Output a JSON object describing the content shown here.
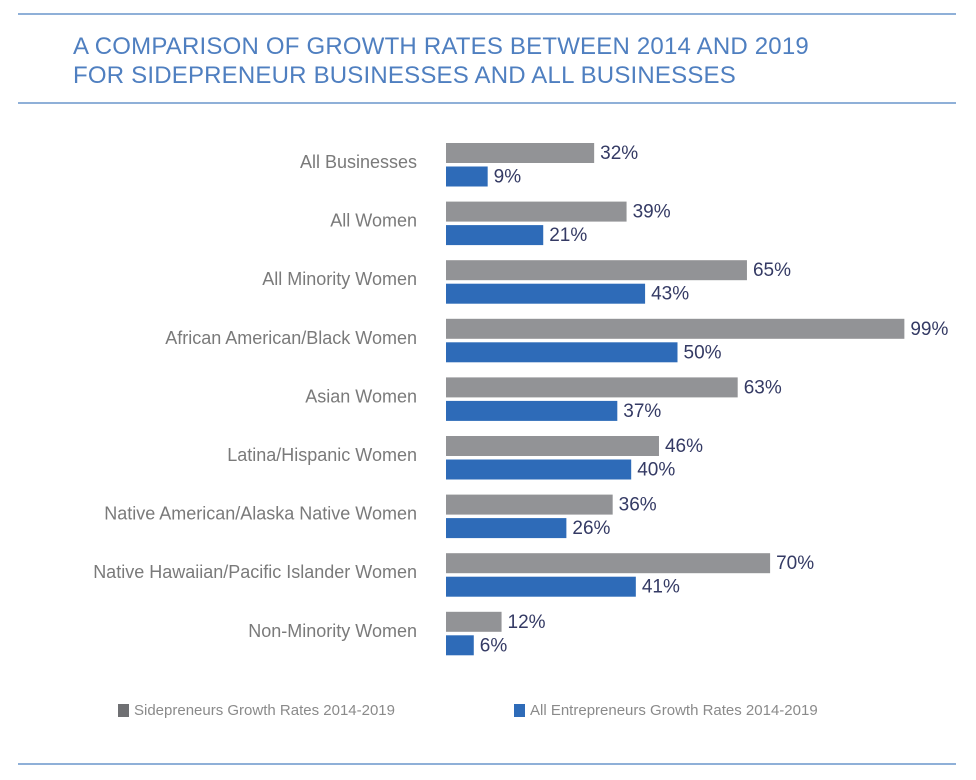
{
  "title_lines": [
    "A COMPARISON OF GROWTH RATES BETWEEN 2014 AND 2019",
    "FOR SIDEPRENEUR BUSINESSES AND ALL BUSINESSES"
  ],
  "colors": {
    "title": "#4f7fc0",
    "rule": "#8fb0d8",
    "sidepreneurs": "#929396",
    "all_entrepreneurs": "#2e6bb8",
    "value_label": "#343a64",
    "category_label": "#7a7a7a"
  },
  "chart_data": {
    "type": "bar",
    "orientation": "horizontal",
    "title": "A COMPARISON OF GROWTH RATES BETWEEN 2014 AND 2019 FOR SIDEPRENEUR BUSINESSES AND ALL BUSINESSES",
    "xlabel": "",
    "ylabel": "",
    "xlim": [
      0,
      100
    ],
    "grid": false,
    "legend_position": "bottom",
    "value_suffix": "%",
    "categories": [
      "All Businesses",
      "All Women",
      "All Minority Women",
      "African American/Black Women",
      "Asian Women",
      "Latina/Hispanic Women",
      "Native American/Alaska Native Women",
      "Native Hawaiian/Pacific Islander Women",
      "Non-Minority Women"
    ],
    "series": [
      {
        "name": "Sidepreneurs Growth Rates 2014-2019",
        "color": "#929396",
        "values": [
          32,
          39,
          65,
          99,
          63,
          46,
          36,
          70,
          12
        ]
      },
      {
        "name": "All Entrepreneurs Growth Rates 2014-2019",
        "color": "#2e6bb8",
        "values": [
          9,
          21,
          43,
          50,
          37,
          40,
          26,
          41,
          6
        ]
      }
    ]
  }
}
